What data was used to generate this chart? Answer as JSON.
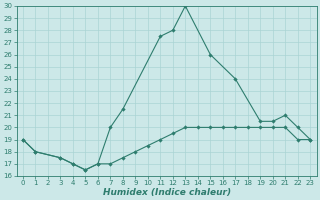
{
  "line_color": "#2e7d6e",
  "bg_color": "#cce8e8",
  "grid_color": "#aad4d4",
  "xlabel": "Humidex (Indice chaleur)",
  "ylim": [
    16,
    30
  ],
  "xlim": [
    -0.5,
    23.5
  ],
  "yticks": [
    16,
    17,
    18,
    19,
    20,
    21,
    22,
    23,
    24,
    25,
    26,
    27,
    28,
    29,
    30
  ],
  "xticks": [
    0,
    1,
    2,
    3,
    4,
    5,
    6,
    7,
    8,
    9,
    10,
    11,
    12,
    13,
    14,
    15,
    16,
    17,
    18,
    19,
    20,
    21,
    22,
    23
  ],
  "series1_x": [
    0,
    1,
    3,
    4,
    5,
    6,
    7,
    8,
    9,
    10,
    11,
    12,
    13,
    14,
    15,
    16,
    17,
    18,
    19,
    20,
    21,
    22,
    23
  ],
  "series1_y": [
    19,
    18,
    17.5,
    17,
    16.5,
    17,
    17,
    17.5,
    18.0,
    18.5,
    19.0,
    19.5,
    20.0,
    20.0,
    20.0,
    20.0,
    20.0,
    20.0,
    20.0,
    20.0,
    20.0,
    19.0,
    19.0
  ],
  "series2_x": [
    0,
    1,
    3,
    4,
    5,
    6,
    7,
    8,
    11,
    12,
    13,
    15,
    17,
    19,
    20,
    21,
    22,
    23
  ],
  "series2_y": [
    19,
    18,
    17.5,
    17,
    16.5,
    17,
    20,
    21.5,
    27.5,
    28.0,
    30.0,
    26.0,
    24.0,
    20.5,
    20.5,
    21.0,
    20.0,
    19.0
  ],
  "xlabel_fontsize": 6.5,
  "tick_fontsize": 5.0,
  "linewidth": 0.8,
  "markersize": 2.2
}
